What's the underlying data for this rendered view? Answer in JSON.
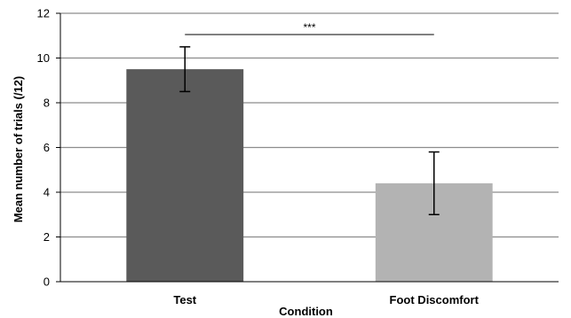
{
  "chart_data": {
    "type": "bar",
    "categories": [
      "Test",
      "Foot Discomfort"
    ],
    "values": [
      9.5,
      4.4
    ],
    "error_low": [
      8.5,
      3.0
    ],
    "error_high": [
      10.5,
      5.8
    ],
    "bar_colors": [
      "#5a5a5a",
      "#b3b3b3"
    ],
    "xlabel": "Condition",
    "ylabel": "Mean number of trials (/12)",
    "ylim": [
      0,
      12
    ],
    "yticks": [
      0,
      2,
      4,
      6,
      8,
      10,
      12
    ],
    "grid": true,
    "significance": {
      "label": "***",
      "from": 0,
      "to": 1
    }
  }
}
